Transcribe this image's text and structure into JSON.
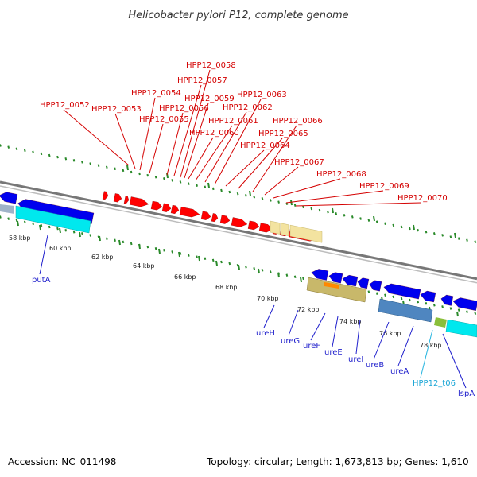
{
  "title": "Helicobacter pylori P12, complete genome",
  "footer": {
    "accession": "Accession: NC_011498",
    "topology": "Topology: circular; Length: 1,673,813 bp; Genes: 1,610"
  },
  "colors": {
    "forward_gene": "#ff0000",
    "reverse_gene": "#0000ee",
    "cds_forward": "#f3e3a0",
    "cds_reverse": "#00e8ee",
    "trna": "#27b5e0",
    "label_red": "#d40000",
    "label_blue": "#1f1fcc",
    "backbone": "#777777",
    "tick": "#2a8a2a"
  },
  "kbp_labels": [
    "58 kbp",
    "60 kbp",
    "62 kbp",
    "64 kbp",
    "66 kbp",
    "68 kbp",
    "70 kbp",
    "72 kbp",
    "74 kbp",
    "76 kbp",
    "78 kbp"
  ],
  "top_labels": [
    "HPP12_0052",
    "HPP12_0053",
    "HPP12_0054",
    "HPP12_0055",
    "HPP12_0056",
    "HPP12_0057",
    "HPP12_0058",
    "HPP12_0059",
    "HPP12_0060",
    "HPP12_0061",
    "HPP12_0062",
    "HPP12_0063",
    "HPP12_0064",
    "HPP12_0065",
    "HPP12_0066",
    "HPP12_0067",
    "HPP12_0068",
    "HPP12_0069",
    "HPP12_0070"
  ],
  "bottom_labels": [
    "putA",
    "ureH",
    "ureG",
    "ureF",
    "ureE",
    "ureI",
    "ureB",
    "ureA",
    "HPP12_t06",
    "lspA"
  ]
}
